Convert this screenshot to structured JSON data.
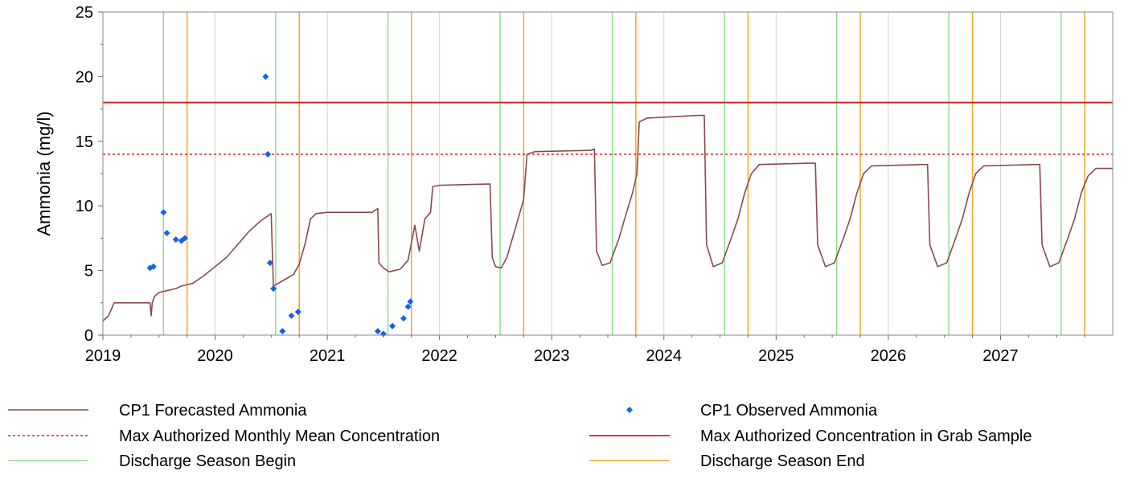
{
  "chart_data": {
    "type": "line",
    "title": "",
    "xlabel": "",
    "ylabel": "Ammonia (mg/l)",
    "xlim": [
      2019.0,
      2028.0
    ],
    "ylim": [
      0,
      25
    ],
    "x_ticks": [
      "2019",
      "2020",
      "2021",
      "2022",
      "2023",
      "2024",
      "2025",
      "2026",
      "2027"
    ],
    "y_ticks": [
      "0",
      "5",
      "10",
      "15",
      "20",
      "25"
    ],
    "grid": "vertical",
    "legend_position": "bottom",
    "colors": {
      "forecast": "#8b4a4a",
      "observed": "#1560e8",
      "monthly_mean": "#e02020",
      "grab_sample": "#cc1f1f",
      "season_begin": "#8fdc8f",
      "season_end": "#f5a623",
      "gridline": "#d4d4d4"
    },
    "series": [
      {
        "name": "CP1 Forecasted Ammonia",
        "kind": "line",
        "points": [
          [
            2019.0,
            1.1
          ],
          [
            2019.05,
            1.5
          ],
          [
            2019.1,
            2.5
          ],
          [
            2019.3,
            2.5
          ],
          [
            2019.42,
            2.5
          ],
          [
            2019.43,
            1.5
          ],
          [
            2019.44,
            2.5
          ],
          [
            2019.46,
            3.0
          ],
          [
            2019.5,
            3.3
          ],
          [
            2019.55,
            3.4
          ],
          [
            2019.65,
            3.6
          ],
          [
            2019.7,
            3.8
          ],
          [
            2019.8,
            4.0
          ],
          [
            2019.9,
            4.6
          ],
          [
            2020.0,
            5.3
          ],
          [
            2020.1,
            6.0
          ],
          [
            2020.2,
            7.0
          ],
          [
            2020.3,
            8.0
          ],
          [
            2020.4,
            8.8
          ],
          [
            2020.5,
            9.4
          ],
          [
            2020.52,
            3.8
          ],
          [
            2020.6,
            4.2
          ],
          [
            2020.7,
            4.7
          ],
          [
            2020.75,
            5.5
          ],
          [
            2020.8,
            7.0
          ],
          [
            2020.85,
            9.0
          ],
          [
            2020.9,
            9.4
          ],
          [
            2021.0,
            9.5
          ],
          [
            2021.3,
            9.5
          ],
          [
            2021.4,
            9.5
          ],
          [
            2021.45,
            9.8
          ],
          [
            2021.46,
            5.6
          ],
          [
            2021.5,
            5.2
          ],
          [
            2021.55,
            4.9
          ],
          [
            2021.65,
            5.1
          ],
          [
            2021.72,
            5.8
          ],
          [
            2021.78,
            8.5
          ],
          [
            2021.82,
            6.5
          ],
          [
            2021.87,
            9.0
          ],
          [
            2021.92,
            9.5
          ],
          [
            2021.94,
            11.5
          ],
          [
            2022.0,
            11.6
          ],
          [
            2022.45,
            11.7
          ],
          [
            2022.47,
            6.0
          ],
          [
            2022.5,
            5.3
          ],
          [
            2022.55,
            5.2
          ],
          [
            2022.6,
            6.0
          ],
          [
            2022.65,
            7.5
          ],
          [
            2022.7,
            9.0
          ],
          [
            2022.75,
            10.5
          ],
          [
            2022.78,
            14.0
          ],
          [
            2022.85,
            14.2
          ],
          [
            2023.35,
            14.3
          ],
          [
            2023.38,
            14.4
          ],
          [
            2023.4,
            6.5
          ],
          [
            2023.45,
            5.4
          ],
          [
            2023.52,
            5.6
          ],
          [
            2023.6,
            7.5
          ],
          [
            2023.65,
            9.0
          ],
          [
            2023.72,
            11.0
          ],
          [
            2023.76,
            12.5
          ],
          [
            2023.78,
            16.5
          ],
          [
            2023.85,
            16.8
          ],
          [
            2024.3,
            17.0
          ],
          [
            2024.36,
            17.0
          ],
          [
            2024.38,
            7.0
          ],
          [
            2024.44,
            5.3
          ],
          [
            2024.52,
            5.6
          ],
          [
            2024.6,
            7.5
          ],
          [
            2024.66,
            9.0
          ],
          [
            2024.72,
            11.0
          ],
          [
            2024.78,
            12.5
          ],
          [
            2024.85,
            13.2
          ],
          [
            2025.3,
            13.3
          ],
          [
            2025.35,
            13.3
          ],
          [
            2025.37,
            7.0
          ],
          [
            2025.44,
            5.3
          ],
          [
            2025.52,
            5.6
          ],
          [
            2025.6,
            7.5
          ],
          [
            2025.66,
            9.0
          ],
          [
            2025.72,
            11.0
          ],
          [
            2025.78,
            12.5
          ],
          [
            2025.85,
            13.1
          ],
          [
            2026.3,
            13.2
          ],
          [
            2026.35,
            13.2
          ],
          [
            2026.37,
            7.0
          ],
          [
            2026.44,
            5.3
          ],
          [
            2026.52,
            5.6
          ],
          [
            2026.6,
            7.5
          ],
          [
            2026.66,
            9.0
          ],
          [
            2026.72,
            11.0
          ],
          [
            2026.78,
            12.5
          ],
          [
            2026.85,
            13.1
          ],
          [
            2027.3,
            13.2
          ],
          [
            2027.35,
            13.2
          ],
          [
            2027.37,
            7.0
          ],
          [
            2027.44,
            5.3
          ],
          [
            2027.52,
            5.6
          ],
          [
            2027.6,
            7.5
          ],
          [
            2027.66,
            9.0
          ],
          [
            2027.72,
            11.0
          ],
          [
            2027.78,
            12.3
          ],
          [
            2027.85,
            12.9
          ],
          [
            2028.0,
            12.9
          ]
        ]
      },
      {
        "name": "CP1 Observed Ammonia",
        "kind": "scatter",
        "points": [
          [
            2019.42,
            5.2
          ],
          [
            2019.45,
            5.3
          ],
          [
            2019.54,
            9.5
          ],
          [
            2019.57,
            7.9
          ],
          [
            2019.65,
            7.4
          ],
          [
            2019.7,
            7.3
          ],
          [
            2019.73,
            7.5
          ],
          [
            2020.45,
            20.0
          ],
          [
            2020.47,
            14.0
          ],
          [
            2020.49,
            5.6
          ],
          [
            2020.52,
            3.6
          ],
          [
            2020.6,
            0.3
          ],
          [
            2020.68,
            1.5
          ],
          [
            2020.74,
            1.8
          ],
          [
            2021.45,
            0.3
          ],
          [
            2021.5,
            0.1
          ],
          [
            2021.58,
            0.7
          ],
          [
            2021.68,
            1.3
          ],
          [
            2021.72,
            2.2
          ],
          [
            2021.74,
            2.6
          ]
        ]
      },
      {
        "name": "Max Authorized Monthly Mean Concentration",
        "kind": "hline",
        "value": 14.0,
        "dash": "dotted"
      },
      {
        "name": "Max Authorized Concentration in Grab Sample",
        "kind": "hline",
        "value": 18.0,
        "dash": "solid"
      },
      {
        "name": "Discharge Season Begin",
        "kind": "vlines",
        "values": [
          2019.54,
          2020.54,
          2021.54,
          2022.54,
          2023.54,
          2024.54,
          2025.54,
          2026.54,
          2027.54
        ]
      },
      {
        "name": "Discharge Season End",
        "kind": "vlines",
        "values": [
          2019.75,
          2020.75,
          2021.75,
          2022.75,
          2023.75,
          2024.75,
          2025.75,
          2026.75,
          2027.75
        ]
      }
    ]
  },
  "legend": [
    {
      "label": "CP1 Forecasted Ammonia",
      "swatch": "line-forecast"
    },
    {
      "label": "CP1 Observed Ammonia",
      "swatch": "diamond-observed"
    },
    {
      "label": "Max Authorized Monthly Mean Concentration",
      "swatch": "dotted-monthly"
    },
    {
      "label": "Max Authorized Concentration in Grab Sample",
      "swatch": "line-grab"
    },
    {
      "label": "Discharge Season Begin",
      "swatch": "line-begin"
    },
    {
      "label": "Discharge Season End",
      "swatch": "line-end"
    }
  ]
}
